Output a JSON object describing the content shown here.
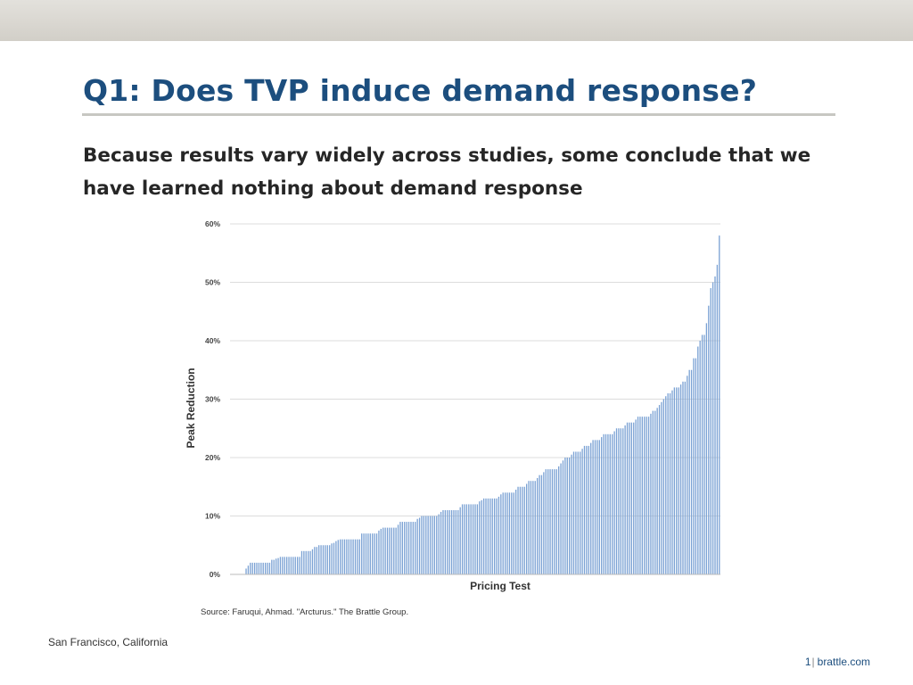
{
  "slide": {
    "title": "Q1: Does TVP induce demand response?",
    "subtitle": "Because results vary widely across studies, some conclude that we have learned nothing about demand response",
    "location": "San Francisco, California",
    "page_number": "1",
    "separator": "|",
    "website": "brattle.com"
  },
  "chart_data": {
    "type": "bar",
    "xlabel": "Pricing Test",
    "ylabel": "Peak Reduction",
    "source": "Source: Faruqui, Ahmad. \"Arcturus.\" The Brattle Group.",
    "ylim": [
      0,
      60
    ],
    "yticks": [
      "0%",
      "10%",
      "20%",
      "30%",
      "40%",
      "50%",
      "60%"
    ],
    "grid": true,
    "legend": "none",
    "bar_color": "#7ba2d4",
    "values": [
      0,
      0,
      0,
      0,
      0,
      0,
      0,
      1,
      1.5,
      2,
      2,
      2,
      2,
      2,
      2,
      2,
      2,
      2,
      2,
      2.5,
      2.5,
      2.7,
      2.8,
      3,
      3,
      3,
      3,
      3,
      3,
      3,
      3,
      3,
      3,
      4,
      4,
      4,
      4,
      4,
      4.3,
      4.7,
      4.7,
      5,
      5,
      5,
      5,
      5,
      5,
      5.3,
      5.4,
      5.7,
      5.9,
      6,
      6,
      6,
      6,
      6,
      6,
      6,
      6,
      6,
      6,
      7,
      7,
      7,
      7,
      7,
      7,
      7,
      7,
      7.5,
      7.8,
      8,
      8,
      8,
      8,
      8,
      8,
      8,
      8.5,
      9,
      9,
      9,
      9,
      9,
      9,
      9,
      9,
      9.5,
      9.7,
      10,
      10,
      10,
      10,
      10,
      10,
      10,
      10,
      10.3,
      10.7,
      11,
      11,
      11,
      11,
      11,
      11,
      11,
      11,
      11.5,
      12,
      12,
      12,
      12,
      12,
      12,
      12,
      12,
      12.5,
      12.7,
      13,
      13,
      13,
      13,
      13,
      13,
      13,
      13.3,
      13.7,
      14,
      14,
      14,
      14,
      14,
      14,
      14.5,
      15,
      15,
      15,
      15,
      15.5,
      16,
      16,
      16,
      16,
      16.5,
      17,
      17,
      17.5,
      18,
      18,
      18,
      18,
      18,
      18,
      18.5,
      19,
      19.5,
      20,
      20,
      20,
      20.5,
      21,
      21,
      21,
      21,
      21.5,
      22,
      22,
      22,
      22.5,
      23,
      23,
      23,
      23,
      23.5,
      24,
      24,
      24,
      24,
      24,
      24.5,
      25,
      25,
      25,
      25,
      25.5,
      26,
      26,
      26,
      26,
      26.5,
      27,
      27,
      27,
      27,
      27,
      27,
      27.5,
      28,
      28,
      28.5,
      29,
      29.5,
      30,
      30.5,
      31,
      31,
      31.5,
      32,
      32,
      32,
      32.5,
      33,
      33,
      34,
      35,
      35,
      37,
      37,
      39,
      40,
      41,
      41,
      43,
      46,
      49,
      50,
      51,
      53,
      58
    ]
  }
}
